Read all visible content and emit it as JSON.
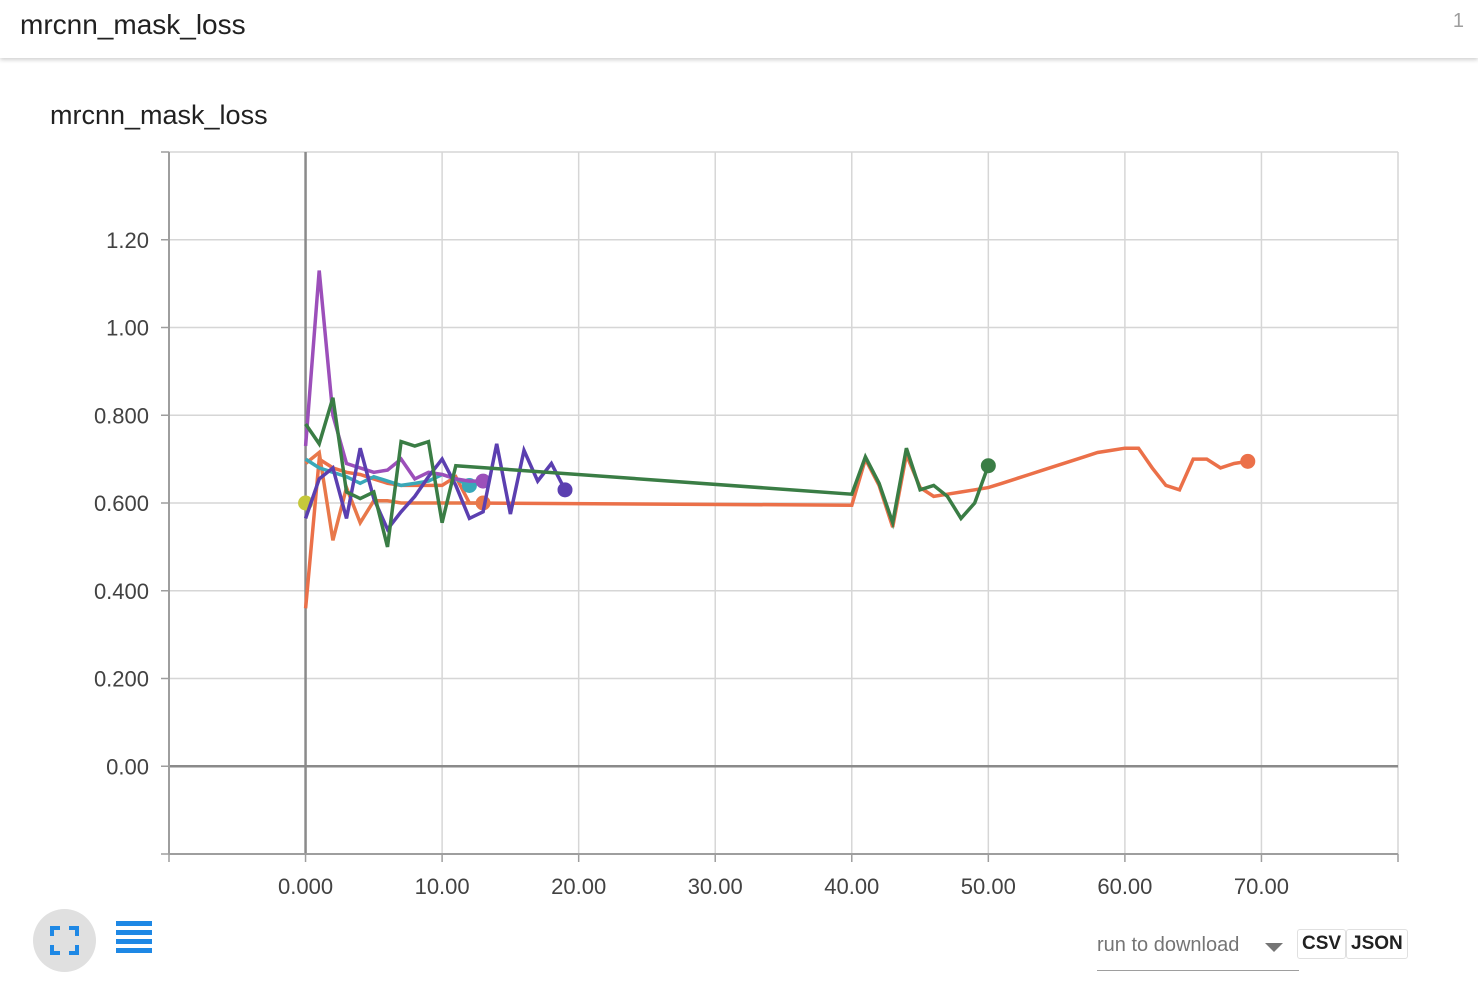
{
  "header": {
    "title": "mrcnn_mask_loss",
    "count": "1"
  },
  "card": {
    "title": "mrcnn_mask_loss"
  },
  "controls": {
    "run_select_placeholder": "run to download",
    "csv_label": "CSV",
    "json_label": "JSON",
    "expand_icon": "fullscreen-icon",
    "data_icon": "list-icon"
  },
  "chart_data": {
    "type": "line",
    "title": "mrcnn_mask_loss",
    "xlabel": "",
    "ylabel": "",
    "xlim": [
      -10,
      80
    ],
    "ylim": [
      -0.2,
      1.4
    ],
    "x_ticks": [
      0,
      10,
      20,
      30,
      40,
      50,
      60,
      70
    ],
    "x_tick_labels": [
      "0.000",
      "10.00",
      "20.00",
      "30.00",
      "40.00",
      "50.00",
      "60.00",
      "70.00"
    ],
    "y_ticks": [
      0,
      0.2,
      0.4,
      0.6,
      0.8,
      1.0,
      1.2
    ],
    "y_tick_labels": [
      "0.00",
      "0.200",
      "0.400",
      "0.600",
      "0.800",
      "1.00",
      "1.20"
    ],
    "grid": true,
    "legend": "none",
    "series": [
      {
        "color": "#c5c83a",
        "x": [
          0
        ],
        "y": [
          0.6
        ]
      },
      {
        "color": "#eb7049",
        "x": [
          0,
          1,
          2,
          3,
          4,
          5,
          6,
          7,
          8,
          9,
          10,
          11,
          12,
          40,
          41,
          42,
          43,
          44,
          45,
          46,
          47,
          48,
          49,
          50,
          51,
          52,
          53,
          54,
          55,
          56,
          57,
          58,
          59,
          60,
          61,
          62,
          63,
          64,
          65,
          66,
          67,
          68,
          69
        ],
        "y": [
          0.36,
          0.7,
          0.68,
          0.67,
          0.665,
          0.655,
          0.645,
          0.64,
          0.64,
          0.64,
          0.64,
          0.66,
          0.6,
          0.595,
          0.7,
          0.64,
          0.545,
          0.71,
          0.635,
          0.615,
          0.62,
          0.625,
          0.63,
          0.635,
          0.645,
          0.655,
          0.665,
          0.675,
          0.685,
          0.695,
          0.705,
          0.715,
          0.72,
          0.725,
          0.725,
          0.68,
          0.64,
          0.63,
          0.7,
          0.7,
          0.68,
          0.69,
          0.695
        ]
      },
      {
        "color": "#e8784a",
        "x": [
          0,
          1,
          2,
          3,
          4,
          5,
          6,
          7,
          8,
          9,
          10,
          11,
          12,
          13
        ],
        "y": [
          0.69,
          0.715,
          0.515,
          0.635,
          0.555,
          0.605,
          0.605,
          0.6,
          0.6,
          0.6,
          0.6,
          0.6,
          0.6,
          0.6
        ]
      },
      {
        "color": "#3aa8b8",
        "x": [
          0,
          1,
          2,
          3,
          4,
          5,
          6,
          7,
          8,
          9,
          10,
          11,
          12
        ],
        "y": [
          0.7,
          0.68,
          0.67,
          0.66,
          0.645,
          0.66,
          0.65,
          0.64,
          0.645,
          0.65,
          0.665,
          0.655,
          0.64
        ]
      },
      {
        "color": "#9c4fba",
        "x": [
          0,
          1,
          2,
          3,
          4,
          5,
          6,
          7,
          8,
          9,
          10,
          11,
          12,
          13
        ],
        "y": [
          0.73,
          1.13,
          0.8,
          0.69,
          0.68,
          0.67,
          0.675,
          0.7,
          0.655,
          0.67,
          0.665,
          0.655,
          0.65,
          0.65
        ]
      },
      {
        "color": "#5b3fb0",
        "x": [
          0,
          1,
          2,
          3,
          4,
          5,
          6,
          7,
          8,
          9,
          10,
          11,
          12,
          13,
          14,
          15,
          16,
          17,
          18,
          19
        ],
        "y": [
          0.565,
          0.655,
          0.68,
          0.565,
          0.725,
          0.61,
          0.54,
          0.58,
          0.615,
          0.66,
          0.7,
          0.64,
          0.565,
          0.58,
          0.735,
          0.575,
          0.72,
          0.65,
          0.69,
          0.63
        ]
      },
      {
        "color": "#3a7d45",
        "x": [
          0,
          1,
          2,
          3,
          4,
          5,
          6,
          7,
          8,
          9,
          10,
          11,
          40,
          41,
          42,
          43,
          44,
          45,
          46,
          47,
          48,
          49,
          50
        ],
        "y": [
          0.78,
          0.735,
          0.84,
          0.625,
          0.61,
          0.625,
          0.5,
          0.74,
          0.73,
          0.74,
          0.555,
          0.685,
          0.62,
          0.705,
          0.645,
          0.555,
          0.725,
          0.63,
          0.64,
          0.615,
          0.565,
          0.6,
          0.685
        ]
      }
    ]
  }
}
